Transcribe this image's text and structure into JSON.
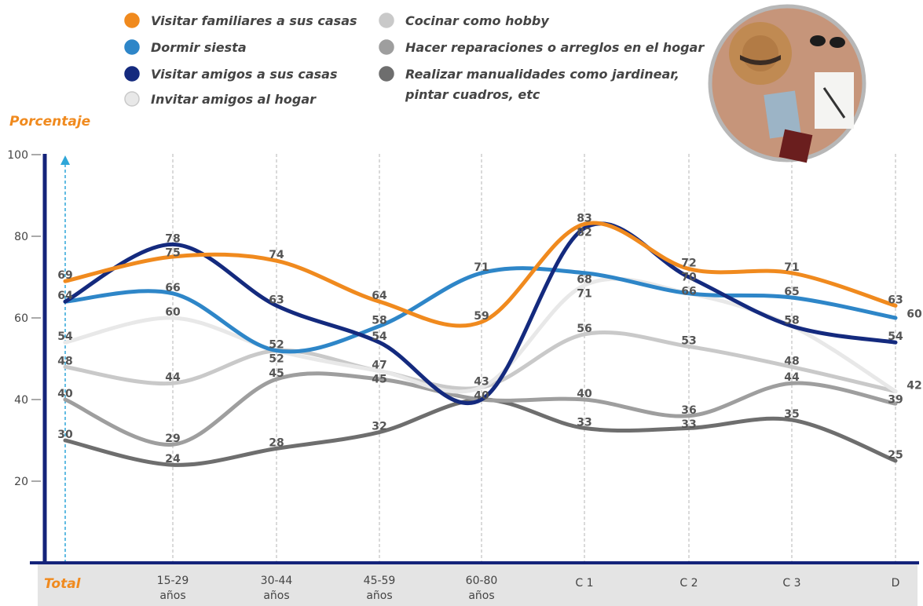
{
  "chart_data": {
    "type": "line",
    "ylabel": "Porcentaje",
    "ylim": [
      0,
      100
    ],
    "yticks": [
      20,
      40,
      60,
      80,
      100
    ],
    "categories": [
      "Total",
      "15-29 años",
      "30-44 años",
      "45-59 años",
      "60-80 años",
      "C 1",
      "C 2",
      "C 3",
      "D"
    ],
    "category_lines": [
      [
        "Total"
      ],
      [
        "15-29",
        "años"
      ],
      [
        "30-44",
        "años"
      ],
      [
        "45-59",
        "años"
      ],
      [
        "60-80",
        "años"
      ],
      [
        "C 1"
      ],
      [
        "C 2"
      ],
      [
        "C 3"
      ],
      [
        "D"
      ]
    ],
    "series": [
      {
        "name": "Visitar familiares a sus casas",
        "color": "#F08A1E",
        "values": [
          69,
          75,
          74,
          64,
          59,
          83,
          72,
          71,
          63
        ]
      },
      {
        "name": "Dormir siesta",
        "color": "#2E86C8",
        "values": [
          64,
          66,
          52,
          58,
          71,
          71,
          66,
          65,
          60
        ]
      },
      {
        "name": "Visitar amigos a sus casas",
        "color": "#142A7E",
        "values": [
          64,
          78,
          63,
          54,
          40,
          82,
          70,
          58,
          54
        ]
      },
      {
        "name": "Invitar amigos al hogar",
        "color": "#E8E8E8",
        "values": [
          54,
          60,
          52,
          47,
          43,
          68,
          66,
          58,
          42
        ]
      },
      {
        "name": "Cocinar como hobby",
        "color": "#C9C9C9",
        "values": [
          48,
          44,
          52,
          47,
          43,
          56,
          53,
          48,
          42
        ]
      },
      {
        "name": "Hacer reparaciones o arreglos en el hogar",
        "color": "#9E9E9E",
        "values": [
          40,
          29,
          45,
          45,
          40,
          40,
          36,
          44,
          39
        ]
      },
      {
        "name": "Realizar manualidades como jardinear, pintar cuadros, etc",
        "color": "#6E6E6E",
        "values": [
          30,
          24,
          28,
          32,
          40,
          33,
          33,
          35,
          25
        ]
      }
    ],
    "data_labels": [
      {
        "ci": 0,
        "t": "69"
      },
      {
        "ci": 0,
        "t": "64"
      },
      {
        "ci": 0,
        "t": "54"
      },
      {
        "ci": 0,
        "t": "48"
      },
      {
        "ci": 0,
        "t": "40"
      },
      {
        "ci": 0,
        "t": "30"
      },
      {
        "ci": 1,
        "t": "78"
      },
      {
        "ci": 1,
        "t": "75"
      },
      {
        "ci": 1,
        "t": "66"
      },
      {
        "ci": 1,
        "t": "60"
      },
      {
        "ci": 1,
        "t": "44"
      },
      {
        "ci": 1,
        "t": "29"
      },
      {
        "ci": 1,
        "t": "24"
      },
      {
        "ci": 2,
        "t": "74"
      },
      {
        "ci": 2,
        "t": "63"
      },
      {
        "ci": 2,
        "t": "52"
      },
      {
        "ci": 2,
        "t": "52"
      },
      {
        "ci": 2,
        "t": "45"
      },
      {
        "ci": 2,
        "t": "28"
      },
      {
        "ci": 3,
        "t": "64"
      },
      {
        "ci": 3,
        "t": "58"
      },
      {
        "ci": 3,
        "t": "54"
      },
      {
        "ci": 3,
        "t": "47"
      },
      {
        "ci": 3,
        "t": "45"
      },
      {
        "ci": 3,
        "t": "32"
      },
      {
        "ci": 4,
        "t": "71"
      },
      {
        "ci": 4,
        "t": "59"
      },
      {
        "ci": 4,
        "t": "43"
      },
      {
        "ci": 4,
        "t": "40"
      },
      {
        "ci": 5,
        "t": "83"
      },
      {
        "ci": 5,
        "t": "82"
      },
      {
        "ci": 5,
        "t": "68"
      },
      {
        "ci": 5,
        "t": "71"
      },
      {
        "ci": 5,
        "t": "56"
      },
      {
        "ci": 5,
        "t": "40"
      },
      {
        "ci": 5,
        "t": "33"
      },
      {
        "ci": 6,
        "t": "72"
      },
      {
        "ci": 6,
        "t": "70"
      },
      {
        "ci": 6,
        "t": "66"
      },
      {
        "ci": 6,
        "t": "53"
      },
      {
        "ci": 6,
        "t": "36"
      },
      {
        "ci": 6,
        "t": "33"
      },
      {
        "ci": 7,
        "t": "71"
      },
      {
        "ci": 7,
        "t": "65"
      },
      {
        "ci": 7,
        "t": "58"
      },
      {
        "ci": 7,
        "t": "48"
      },
      {
        "ci": 7,
        "t": "44"
      },
      {
        "ci": 7,
        "t": "35"
      },
      {
        "ci": 8,
        "t": "63"
      },
      {
        "ci": 8,
        "t": "60"
      },
      {
        "ci": 8,
        "t": "54"
      },
      {
        "ci": 8,
        "t": "42"
      },
      {
        "ci": 8,
        "t": "39"
      },
      {
        "ci": 8,
        "t": "25"
      }
    ],
    "grid": "vertical-dashed",
    "legend_position": "top"
  },
  "colors": {
    "axis": "#14237A",
    "accent": "#F08A1E",
    "total_marker": "#2EA6D8",
    "category_band": "#E4E4E4"
  },
  "decor": {
    "image": "travel-items-photo"
  }
}
